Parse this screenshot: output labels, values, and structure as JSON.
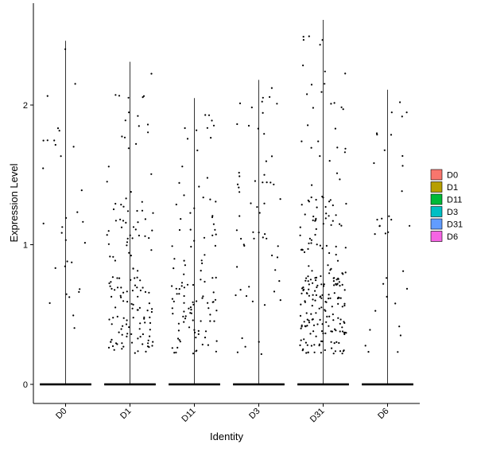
{
  "chart_data": {
    "type": "scatter",
    "subtype": "violin-jitter",
    "title": "",
    "xlabel": "Identity",
    "ylabel": "Expression Level",
    "categories": [
      "D0",
      "D1",
      "D11",
      "D3",
      "D31",
      "D6"
    ],
    "colors": [
      "#F8766D",
      "#B79F00",
      "#00BA38",
      "#00BFC4",
      "#619CFF",
      "#F564E3"
    ],
    "ylim": [
      -0.15,
      2.75
    ],
    "yticks": [
      0,
      1,
      2
    ],
    "max_values": [
      2.46,
      2.31,
      2.05,
      2.18,
      2.61,
      2.11
    ],
    "zero_band": true,
    "legend": {
      "position": "right",
      "entries": [
        "D0",
        "D1",
        "D11",
        "D3",
        "D31",
        "D6"
      ]
    },
    "grid": false,
    "points_per_group": [
      32,
      150,
      115,
      60,
      240,
      35
    ]
  }
}
